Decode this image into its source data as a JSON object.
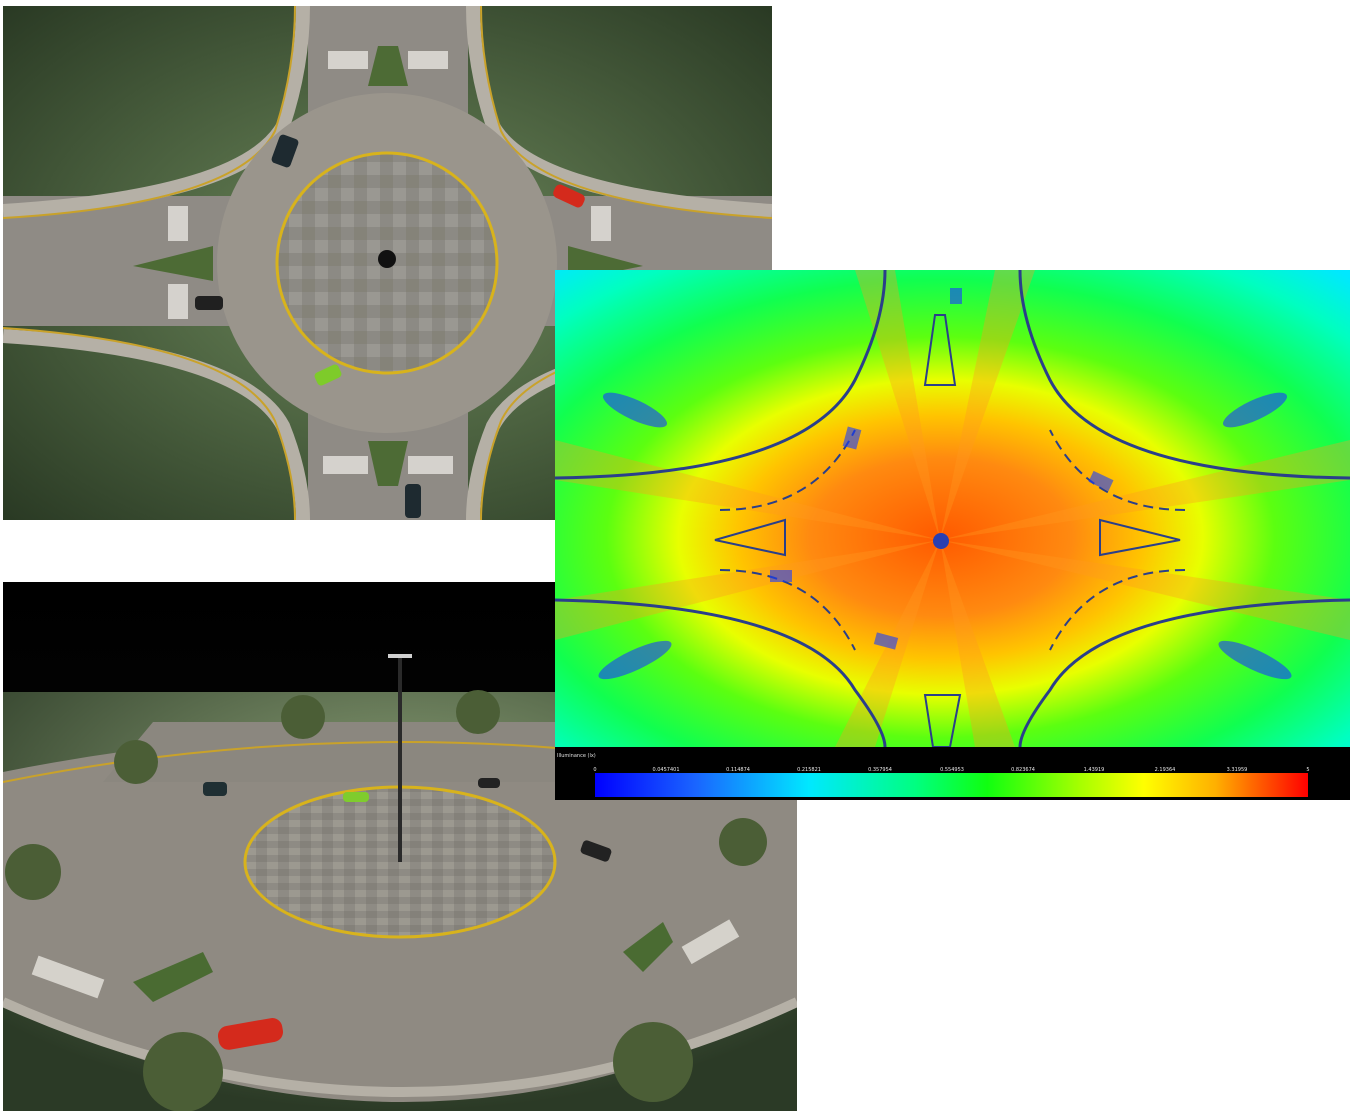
{
  "images": {
    "top_render": {
      "icon": "roundabout-top-view-render"
    },
    "bottom_render": {
      "icon": "roundabout-perspective-render"
    },
    "analysis": {
      "icon": "illuminance-false-color-map"
    }
  },
  "legend": {
    "title": "Illuminance (lx)",
    "ticks": [
      "0",
      "0.0457401",
      "0.114874",
      "0.215821",
      "0.357954",
      "0.554953",
      "0.823674",
      "1.43919",
      "2.19364",
      "3.31959",
      "5"
    ],
    "colors": [
      "#0000ff",
      "#1a64ff",
      "#00e8ff",
      "#00ff80",
      "#10ff10",
      "#a6ff00",
      "#ffff00",
      "#ffb000",
      "#ff5000",
      "#ff0000"
    ]
  }
}
